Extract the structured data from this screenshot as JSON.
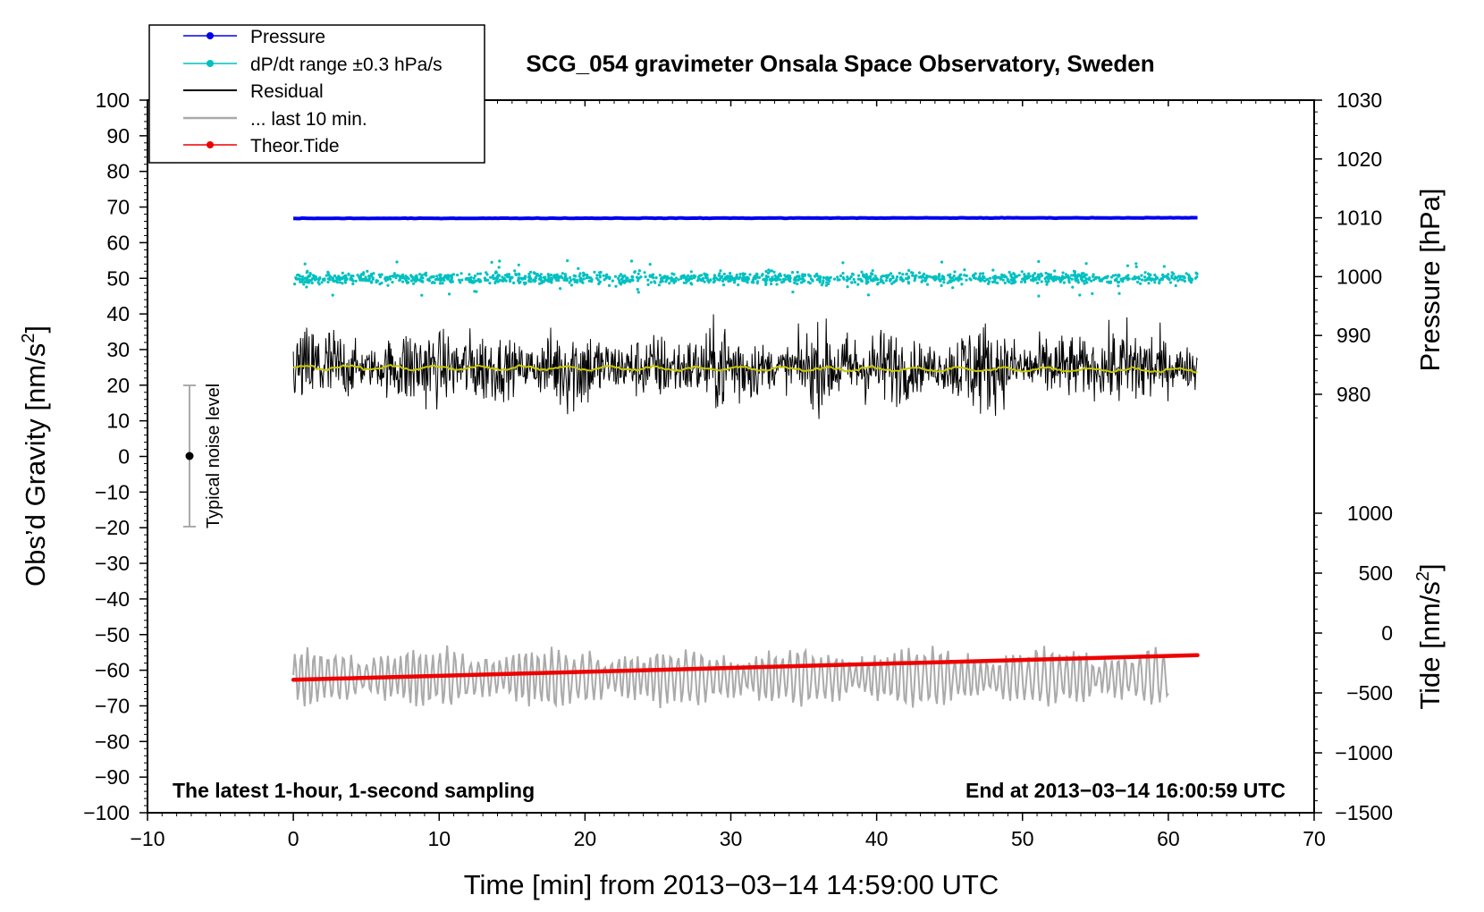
{
  "chart_data": {
    "type": "line",
    "title": "SCG_054 gravimeter Onsala Space Observatory, Sweden",
    "xlabel": "Time [min] from 2013−03−14 14:59:00 UTC",
    "ylabel_prefix": "Obs’d Gravity [nm/s",
    "ylabel_sup": "2",
    "ylabel_suffix": "]",
    "y2label": "Pressure [hPa]",
    "y3label_prefix": "Tide [nm/s",
    "y3label_sup": "2",
    "y3label_suffix": "]",
    "xlim": [
      -10,
      70
    ],
    "ylim": [
      -100,
      100
    ],
    "x_ticks": [
      "−10",
      "0",
      "10",
      "20",
      "30",
      "40",
      "50",
      "60",
      "70"
    ],
    "y_ticks": [
      "100",
      "90",
      "80",
      "70",
      "60",
      "50",
      "40",
      "30",
      "20",
      "10",
      "0",
      "−10",
      "−20",
      "−30",
      "−40",
      "−50",
      "−60",
      "−70",
      "−80",
      "−90",
      "−100"
    ],
    "pressure_axis": {
      "range": [
        975,
        1030
      ],
      "ticks": [
        "1030",
        "1020",
        "1010",
        "1000",
        "990",
        "980"
      ]
    },
    "tide_axis": {
      "range": [
        -1500,
        1000
      ],
      "ticks": [
        "1000",
        "500",
        "0",
        "−500",
        "−1000",
        "−1500"
      ]
    },
    "legend": [
      {
        "label": "Pressure",
        "color": "#0000ee",
        "marker": "dot"
      },
      {
        "label": "dP/dt range ±0.3 hPa/s",
        "color": "#00c0c0",
        "marker": "dot"
      },
      {
        "label": "Residual",
        "color": "#000000",
        "marker": "line"
      },
      {
        "label": "... last 10 min.",
        "color": "#aaaaaa",
        "marker": "line"
      },
      {
        "label": "Theor.Tide",
        "color": "#ee0000",
        "marker": "dot"
      }
    ],
    "series": [
      {
        "name": "Pressure",
        "axis": "pressure",
        "color": "#0000ee",
        "x": [
          0,
          62
        ],
        "values": [
          1009.9,
          1010.0
        ]
      },
      {
        "name": "dP/dt",
        "axis": "gravity",
        "color": "#00c0c0",
        "x": [
          0,
          62
        ],
        "center": 50,
        "spread": 2.5
      },
      {
        "name": "Residual",
        "axis": "gravity",
        "color": "#000000",
        "x": [
          0,
          62
        ],
        "center": 25,
        "spread": 7
      },
      {
        "name": "Residual smoothed",
        "axis": "gravity",
        "color": "#c8c800",
        "x": [
          0,
          62
        ],
        "center": 25
      },
      {
        "name": "... last 10 min.",
        "axis": "gravity",
        "color": "#aaaaaa",
        "x": [
          0,
          60
        ],
        "center": -62,
        "spread": 6
      },
      {
        "name": "Theor.Tide",
        "axis": "tide",
        "color": "#ee0000",
        "x": [
          0,
          62
        ],
        "values": [
          -390,
          -185
        ]
      }
    ],
    "noise_bar": {
      "label": "Typical noise level",
      "x": -7,
      "center": 0,
      "low": -20,
      "high": 20
    },
    "annotations": {
      "bottom_left": "The latest 1-hour, 1-second sampling",
      "bottom_right": "End at 2013−03−14 16:00:59 UTC"
    }
  }
}
